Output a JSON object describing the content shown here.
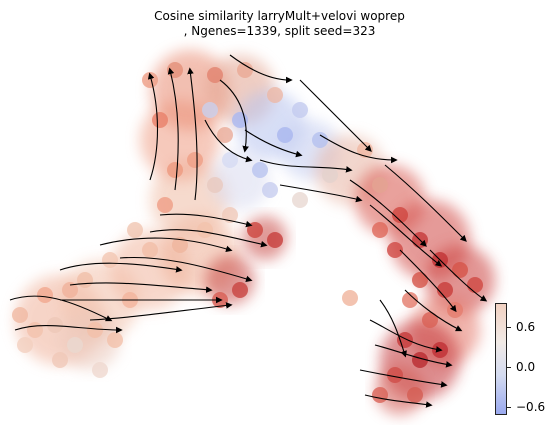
{
  "chart_data": {
    "type": "scatter",
    "title": "Cosine similarity larryMult+velovi woprep\n, Ngenes=1339, split seed=323",
    "xlabel": "",
    "ylabel": "",
    "colorbar": {
      "ticks": [
        "0.6",
        "0.0",
        "−0.6"
      ],
      "range": [
        -0.75,
        0.85
      ],
      "colormap": "coolwarm",
      "colors": {
        "low": "#7b8ff0",
        "mid": "#efe9e6",
        "high": "#b22028"
      }
    },
    "grid": false,
    "overlay": "velocity streamlines"
  }
}
